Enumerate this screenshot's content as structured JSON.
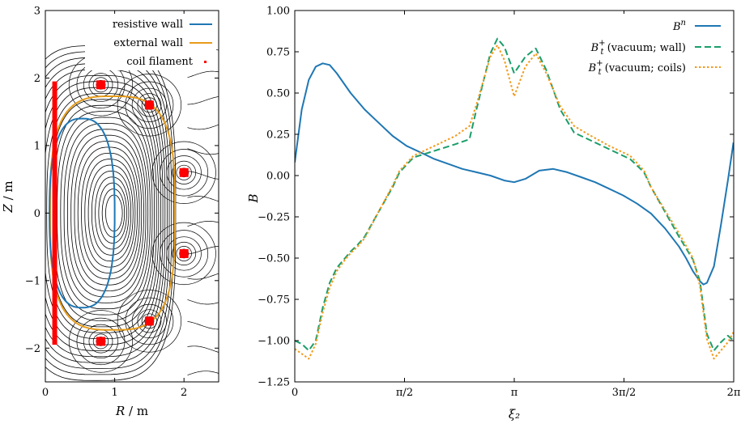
{
  "chart_data": [
    {
      "type": "line",
      "panel": "left",
      "xlabel_var": "R",
      "xlabel_unit": " / m",
      "ylabel_var": "Z",
      "ylabel_unit": " / m",
      "xlim": [
        0,
        2.5
      ],
      "ylim": [
        -2.5,
        3
      ],
      "xticks": [
        0,
        1,
        2
      ],
      "xtick_labels": [
        "0",
        "1",
        "2"
      ],
      "yticks": [
        -2,
        -1,
        0,
        1,
        2,
        3
      ],
      "ytick_labels": [
        "−2",
        "−1",
        "0",
        "1",
        "2",
        "3"
      ],
      "grid": false,
      "legend_position": "top-right",
      "legend": [
        {
          "label": "resistive wall",
          "color": "#1f77b4",
          "style": "solid"
        },
        {
          "label": "external wall",
          "color": "#e69b1a",
          "style": "solid"
        },
        {
          "label": "coil filament",
          "color": "#ff0000",
          "style": "marker"
        }
      ],
      "resistive_wall": {
        "r_center": 0.53,
        "half_width": 0.47,
        "half_height": 1.4,
        "exponent": 2.6
      },
      "external_wall": {
        "r_center": 0.97,
        "half_width": 0.9,
        "half_height": 1.73,
        "exponent": 3.2
      },
      "coils": [
        {
          "R": 0.8,
          "Z": 1.9
        },
        {
          "R": 1.5,
          "Z": 1.6
        },
        {
          "R": 2.0,
          "Z": 0.6
        },
        {
          "R": 2.0,
          "Z": -0.6
        },
        {
          "R": 1.5,
          "Z": -1.6
        },
        {
          "R": 0.8,
          "Z": -1.9
        }
      ],
      "central_filaments": {
        "R": [
          0.1,
          0.17
        ],
        "Z": [
          -1.95,
          1.95
        ]
      },
      "flux_surface_center": {
        "R": 1.0,
        "Z": 0.0
      }
    },
    {
      "type": "line",
      "panel": "right",
      "xlabel": "ξ₂",
      "ylabel": "B",
      "xlim": [
        0,
        6.2832
      ],
      "ylim": [
        -1.25,
        1.0
      ],
      "xticks": [
        0,
        1.5708,
        3.1416,
        4.7124,
        6.2832
      ],
      "xtick_labels": [
        "0",
        "π/2",
        "π",
        "3π/2",
        "2π"
      ],
      "yticks": [
        -1.25,
        -1.0,
        -0.75,
        -0.5,
        -0.25,
        0.0,
        0.25,
        0.5,
        0.75,
        1.0
      ],
      "ytick_labels": [
        "−1.25",
        "−1.00",
        "−0.75",
        "−0.50",
        "−0.25",
        "0.00",
        "0.25",
        "0.50",
        "0.75",
        "1.00"
      ],
      "grid": false,
      "legend_position": "top-right",
      "series": [
        {
          "name": "B^n",
          "label_main": "B",
          "label_sup": "n",
          "label_sub": "",
          "label_rest": "",
          "color": "#1f77b4",
          "dash": "",
          "x": [
            0,
            0.1,
            0.2,
            0.3,
            0.4,
            0.5,
            0.6,
            0.8,
            1.0,
            1.2,
            1.4,
            1.6,
            1.8,
            2.0,
            2.2,
            2.4,
            2.6,
            2.8,
            3.0,
            3.14,
            3.3,
            3.5,
            3.7,
            3.9,
            4.1,
            4.3,
            4.5,
            4.7,
            4.9,
            5.1,
            5.3,
            5.5,
            5.6,
            5.7,
            5.8,
            5.85,
            5.9,
            6.0,
            6.1,
            6.2,
            6.28
          ],
          "y": [
            0.08,
            0.4,
            0.58,
            0.66,
            0.68,
            0.67,
            0.62,
            0.5,
            0.4,
            0.32,
            0.24,
            0.18,
            0.14,
            0.1,
            0.07,
            0.04,
            0.02,
            0.0,
            -0.03,
            -0.04,
            -0.02,
            0.03,
            0.04,
            0.02,
            -0.01,
            -0.04,
            -0.08,
            -0.12,
            -0.17,
            -0.23,
            -0.32,
            -0.43,
            -0.5,
            -0.58,
            -0.64,
            -0.66,
            -0.65,
            -0.55,
            -0.3,
            -0.03,
            0.2
          ]
        },
        {
          "name": "B_t^+ (vacuum; wall)",
          "label_main": "B",
          "label_sup": "+",
          "label_sub": "t",
          "label_rest": " (vacuum; wall)",
          "color": "#1a9e6a",
          "dash": "8 4",
          "x": [
            0,
            0.1,
            0.2,
            0.3,
            0.4,
            0.5,
            0.6,
            0.7,
            0.8,
            0.9,
            1.0,
            1.2,
            1.4,
            1.5,
            1.7,
            2.0,
            2.3,
            2.5,
            2.6,
            2.8,
            2.9,
            3.0,
            3.14,
            3.3,
            3.45,
            3.6,
            3.8,
            4.0,
            4.2,
            4.5,
            4.8,
            5.0,
            5.1,
            5.3,
            5.5,
            5.7,
            5.8,
            5.85,
            5.9,
            6.0,
            6.1,
            6.2,
            6.28
          ],
          "y": [
            -1.0,
            -1.02,
            -1.06,
            -1.0,
            -0.8,
            -0.65,
            -0.56,
            -0.51,
            -0.46,
            -0.42,
            -0.37,
            -0.22,
            -0.07,
            0.02,
            0.11,
            0.15,
            0.19,
            0.22,
            0.4,
            0.74,
            0.83,
            0.78,
            0.62,
            0.72,
            0.77,
            0.64,
            0.4,
            0.26,
            0.22,
            0.16,
            0.1,
            0.02,
            -0.07,
            -0.22,
            -0.37,
            -0.51,
            -0.64,
            -0.8,
            -0.96,
            -1.06,
            -1.01,
            -0.97,
            -1.0
          ]
        },
        {
          "name": "B_t^+ (vacuum; coils)",
          "label_main": "B",
          "label_sup": "+",
          "label_sub": "t",
          "label_rest": " (vacuum; coils)",
          "color": "#f29b1c",
          "dash": "2.5 2.5",
          "x": [
            0,
            0.1,
            0.2,
            0.3,
            0.4,
            0.5,
            0.6,
            0.7,
            0.8,
            0.9,
            1.0,
            1.2,
            1.4,
            1.5,
            1.7,
            2.0,
            2.3,
            2.5,
            2.6,
            2.8,
            2.9,
            3.0,
            3.14,
            3.3,
            3.45,
            3.6,
            3.8,
            4.0,
            4.2,
            4.5,
            4.8,
            5.0,
            5.1,
            5.3,
            5.5,
            5.7,
            5.8,
            5.85,
            5.9,
            6.0,
            6.1,
            6.2,
            6.28
          ],
          "y": [
            -1.05,
            -1.08,
            -1.11,
            -1.02,
            -0.83,
            -0.68,
            -0.58,
            -0.52,
            -0.47,
            -0.43,
            -0.38,
            -0.22,
            -0.06,
            0.03,
            0.12,
            0.18,
            0.24,
            0.3,
            0.43,
            0.72,
            0.79,
            0.7,
            0.48,
            0.66,
            0.74,
            0.62,
            0.42,
            0.3,
            0.25,
            0.18,
            0.12,
            0.03,
            -0.07,
            -0.21,
            -0.35,
            -0.5,
            -0.67,
            -0.83,
            -0.99,
            -1.11,
            -1.06,
            -1.01,
            -0.95
          ]
        }
      ]
    }
  ]
}
